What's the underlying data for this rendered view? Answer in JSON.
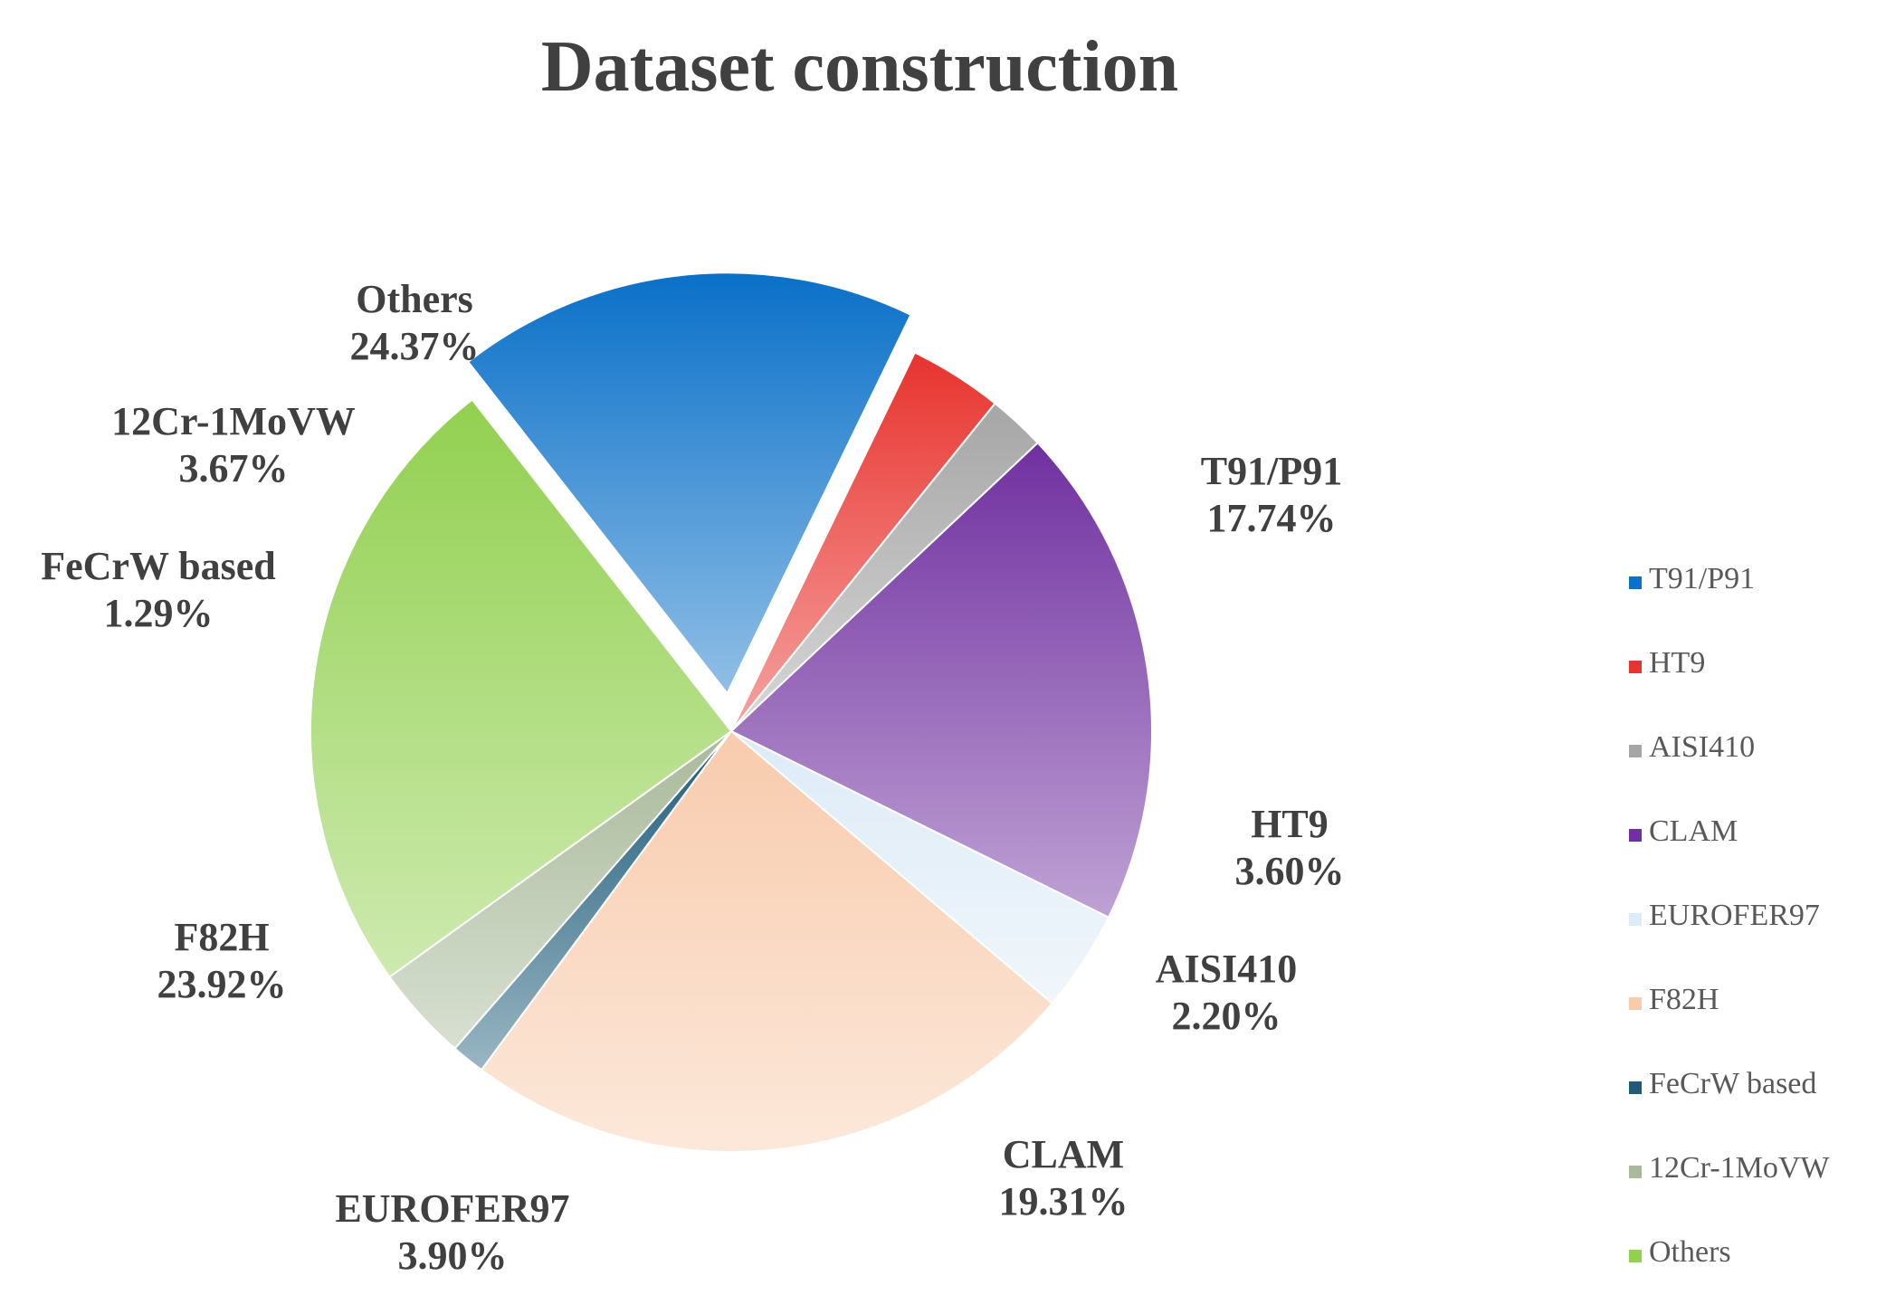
{
  "chart_data": {
    "type": "pie",
    "title": "Dataset construction",
    "slices": [
      {
        "name": "T91/P91",
        "value": 17.74,
        "label": "17.74%",
        "color": "#0A70C8",
        "exploded": true
      },
      {
        "name": "HT9",
        "value": 3.6,
        "label": "3.60%",
        "color": "#E8332E"
      },
      {
        "name": "AISI410",
        "value": 2.2,
        "label": "2.20%",
        "color": "#A6A6A6"
      },
      {
        "name": "CLAM",
        "value": 19.31,
        "label": "19.31%",
        "color": "#7030A0"
      },
      {
        "name": "EUROFER97",
        "value": 3.9,
        "label": "3.90%",
        "color": "#DDEBF7"
      },
      {
        "name": "F82H",
        "value": 23.92,
        "label": "23.92%",
        "color": "#F8CBAD"
      },
      {
        "name": "FeCrW based",
        "value": 1.29,
        "label": "1.29%",
        "color": "#1F5C7A"
      },
      {
        "name": "12Cr-1MoVW",
        "value": 3.67,
        "label": "3.67%",
        "color": "#A9B99A"
      },
      {
        "name": "Others",
        "value": 24.37,
        "label": "24.37%",
        "color": "#92D050"
      }
    ],
    "legend": {
      "position": "right"
    }
  }
}
